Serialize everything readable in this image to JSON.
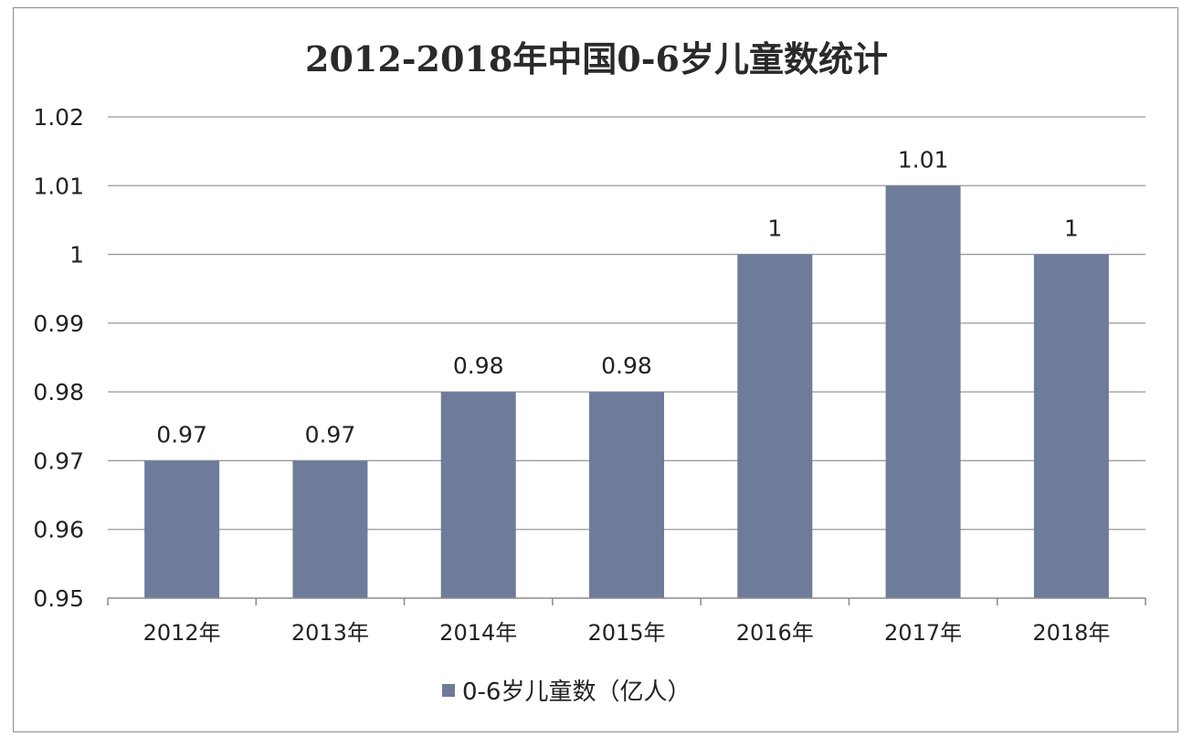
{
  "chart_data": {
    "type": "bar",
    "title": "2012-2018年中国0-6岁儿童数统计",
    "categories": [
      "2012年",
      "2013年",
      "2014年",
      "2015年",
      "2016年",
      "2017年",
      "2018年"
    ],
    "series": [
      {
        "name": "0-6岁儿童数（亿人）",
        "values": [
          0.97,
          0.97,
          0.98,
          0.98,
          1,
          1.01,
          1
        ],
        "data_labels": [
          "0.97",
          "0.97",
          "0.98",
          "0.98",
          "1",
          "1.01",
          "1"
        ],
        "color": "#6f7b9b"
      }
    ],
    "ylim": [
      0.95,
      1.02
    ],
    "yticks": [
      0.95,
      0.96,
      0.97,
      0.98,
      0.99,
      1,
      1.01,
      1.02
    ],
    "ytick_labels": [
      "0.95",
      "0.96",
      "0.97",
      "0.98",
      "0.99",
      "1",
      "1.01",
      "1.02"
    ],
    "grid": true,
    "legend": "bottom-center"
  }
}
